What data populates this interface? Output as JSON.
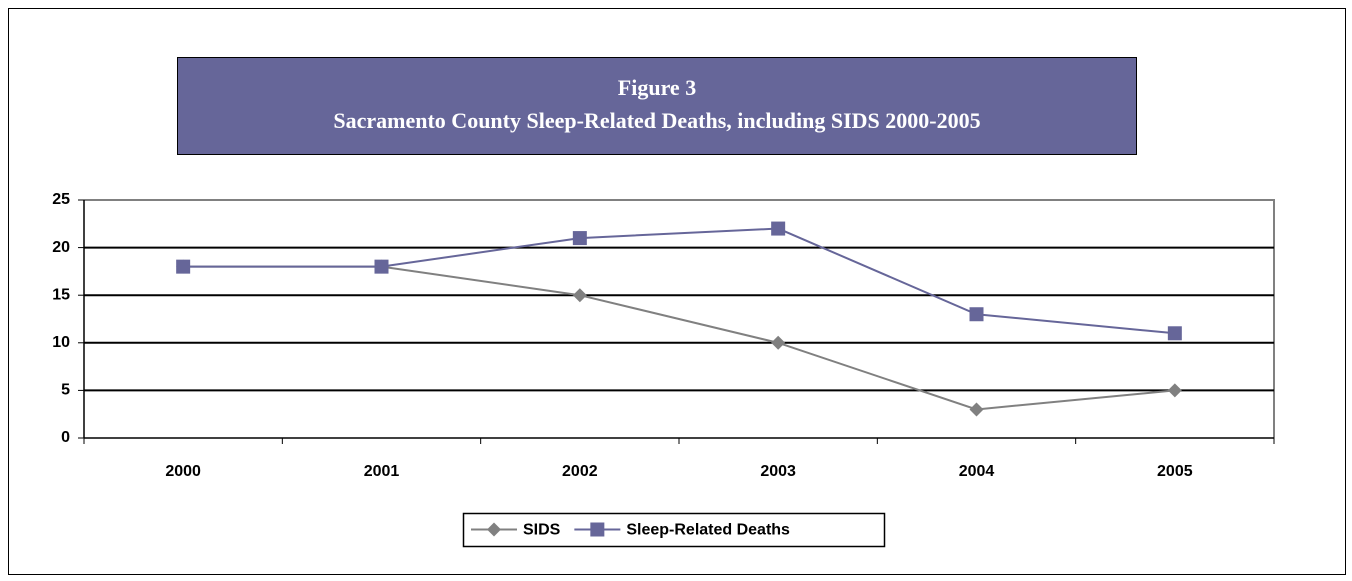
{
  "chart_data": {
    "type": "line",
    "title": "Figure 3",
    "subtitle": "Sacramento County Sleep-Related Deaths, including SIDS 2000-2005",
    "categories": [
      "2000",
      "2001",
      "2002",
      "2003",
      "2004",
      "2005"
    ],
    "series": [
      {
        "name": "SIDS",
        "color": "#808080",
        "marker": "diamond",
        "values": [
          18,
          18,
          15,
          10,
          3,
          5
        ]
      },
      {
        "name": "Sleep-Related Deaths",
        "color": "#666699",
        "marker": "square",
        "values": [
          18,
          18,
          21,
          22,
          13,
          11
        ]
      }
    ],
    "ylim": [
      0,
      25
    ],
    "yticks": [
      0,
      5,
      10,
      15,
      20,
      25
    ],
    "grid": true,
    "legend": "bottom"
  }
}
